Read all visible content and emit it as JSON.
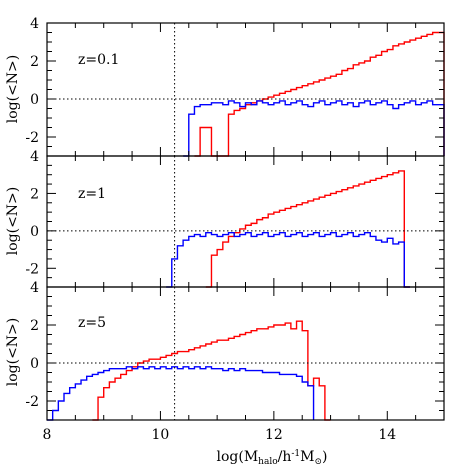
{
  "chart_data": [
    {
      "type": "line",
      "panel_label": "z=0.1",
      "ylabel": "log(<N>)",
      "xlim": [
        8,
        15
      ],
      "ylim": [
        -3,
        4
      ],
      "yticks": [
        -2,
        0,
        2,
        4
      ],
      "reference_lines": {
        "y": 0,
        "x": 10.25
      },
      "series": [
        {
          "color": "#ff0000",
          "x": [
            10.6,
            10.7,
            10.8,
            10.9,
            11.0,
            11.1,
            11.2,
            11.3,
            11.4,
            11.5,
            11.6,
            11.7,
            11.8,
            11.9,
            12.0,
            12.1,
            12.2,
            12.3,
            12.4,
            12.5,
            12.6,
            12.7,
            12.8,
            12.9,
            13.0,
            13.1,
            13.2,
            13.3,
            13.4,
            13.5,
            13.6,
            13.7,
            13.8,
            13.9,
            14.0,
            14.1,
            14.2,
            14.3,
            14.4,
            14.5,
            14.6,
            14.7,
            14.8,
            14.9
          ],
          "y": [
            -3.0,
            -1.5,
            -1.5,
            -3.0,
            -3.0,
            -3.0,
            -0.8,
            -0.6,
            -0.5,
            -0.3,
            -0.2,
            -0.1,
            0.0,
            0.1,
            0.2,
            0.3,
            0.4,
            0.5,
            0.6,
            0.7,
            0.8,
            0.9,
            1.0,
            1.1,
            1.2,
            1.3,
            1.5,
            1.6,
            1.8,
            1.9,
            2.0,
            2.2,
            2.3,
            2.5,
            2.6,
            2.8,
            2.9,
            3.0,
            3.1,
            3.2,
            3.3,
            3.4,
            3.5,
            3.5
          ]
        },
        {
          "color": "#0000ff",
          "x": [
            10.4,
            10.5,
            10.6,
            10.7,
            10.8,
            10.9,
            11.0,
            11.1,
            11.2,
            11.3,
            11.4,
            11.5,
            11.6,
            11.7,
            11.8,
            11.9,
            12.0,
            12.1,
            12.2,
            12.3,
            12.4,
            12.5,
            12.6,
            12.7,
            12.8,
            12.9,
            13.0,
            13.1,
            13.2,
            13.3,
            13.4,
            13.5,
            13.6,
            13.7,
            13.8,
            13.9,
            14.0,
            14.1,
            14.2,
            14.3,
            14.4,
            14.5,
            14.6,
            14.7,
            14.8,
            14.9
          ],
          "y": [
            -3.0,
            -0.8,
            -0.4,
            -0.3,
            -0.3,
            -0.2,
            -0.2,
            -0.3,
            -0.1,
            -0.2,
            -0.4,
            -0.2,
            -0.3,
            -0.1,
            -0.2,
            -0.3,
            -0.2,
            -0.1,
            -0.3,
            -0.2,
            -0.1,
            -0.3,
            -0.4,
            -0.2,
            -0.1,
            -0.3,
            -0.2,
            -0.1,
            -0.3,
            -0.2,
            -0.4,
            -0.2,
            -0.1,
            -0.3,
            -0.2,
            -0.1,
            -0.3,
            -0.5,
            -0.3,
            -0.2,
            -0.1,
            -0.3,
            -0.2,
            -0.1,
            -0.3,
            -0.3
          ]
        }
      ]
    },
    {
      "type": "line",
      "panel_label": "z=1",
      "ylabel": "log(<N>)",
      "xlim": [
        8,
        15
      ],
      "ylim": [
        -3,
        4
      ],
      "yticks": [
        -2,
        0,
        2,
        4
      ],
      "reference_lines": {
        "y": 0,
        "x": 10.25
      },
      "series": [
        {
          "color": "#ff0000",
          "x": [
            10.8,
            10.9,
            11.0,
            11.1,
            11.2,
            11.3,
            11.4,
            11.5,
            11.6,
            11.7,
            11.8,
            11.9,
            12.0,
            12.1,
            12.2,
            12.3,
            12.4,
            12.5,
            12.6,
            12.7,
            12.8,
            12.9,
            13.0,
            13.1,
            13.2,
            13.3,
            13.4,
            13.5,
            13.6,
            13.7,
            13.8,
            13.9,
            14.0,
            14.1,
            14.2,
            14.3
          ],
          "y": [
            -3.0,
            -1.3,
            -1.0,
            -0.6,
            -0.3,
            -0.1,
            0.1,
            0.3,
            0.4,
            0.6,
            0.7,
            0.9,
            1.0,
            1.1,
            1.2,
            1.3,
            1.4,
            1.5,
            1.6,
            1.7,
            1.8,
            1.9,
            2.0,
            2.1,
            2.2,
            2.3,
            2.4,
            2.5,
            2.6,
            2.7,
            2.8,
            2.9,
            3.0,
            3.1,
            3.2,
            -3.0
          ]
        },
        {
          "color": "#0000ff",
          "x": [
            10.1,
            10.2,
            10.3,
            10.4,
            10.5,
            10.6,
            10.7,
            10.8,
            10.9,
            11.0,
            11.1,
            11.2,
            11.3,
            11.4,
            11.5,
            11.6,
            11.7,
            11.8,
            11.9,
            12.0,
            12.1,
            12.2,
            12.3,
            12.4,
            12.5,
            12.6,
            12.7,
            12.8,
            12.9,
            13.0,
            13.1,
            13.2,
            13.3,
            13.4,
            13.5,
            13.6,
            13.7,
            13.8,
            13.9,
            14.0,
            14.1,
            14.2,
            14.3
          ],
          "y": [
            -3.0,
            -1.5,
            -0.8,
            -0.5,
            -0.3,
            -0.2,
            -0.3,
            -0.1,
            -0.2,
            -0.3,
            -0.2,
            -0.1,
            -0.3,
            -0.2,
            -0.1,
            -0.3,
            -0.2,
            -0.1,
            -0.3,
            -0.2,
            -0.1,
            -0.3,
            -0.2,
            -0.1,
            -0.3,
            -0.2,
            -0.1,
            -0.3,
            -0.2,
            -0.1,
            -0.3,
            -0.2,
            -0.1,
            -0.3,
            -0.2,
            -0.1,
            -0.3,
            -0.5,
            -0.6,
            -0.4,
            -0.7,
            -0.6,
            -3.0
          ]
        }
      ]
    },
    {
      "type": "line",
      "panel_label": "z=5",
      "ylabel": "log(<N>)",
      "xlabel": "log(M_halo/h^-1 M_sun)",
      "xlabel_parts": {
        "pre": "log(M",
        "sub1": "halo",
        "mid": "/h",
        "sup": "-1",
        "post1": "M",
        "sub2": "⊙",
        "post2": ")"
      },
      "xlim": [
        8,
        15
      ],
      "ylim": [
        -3,
        4
      ],
      "xticks": [
        8,
        10,
        12,
        14
      ],
      "yticks": [
        -2,
        0,
        2,
        4
      ],
      "reference_lines": {
        "y": 0,
        "x": 10.25
      },
      "series": [
        {
          "color": "#ff0000",
          "x": [
            8.8,
            8.9,
            9.0,
            9.1,
            9.2,
            9.3,
            9.4,
            9.5,
            9.6,
            9.7,
            9.8,
            9.9,
            10.0,
            10.1,
            10.2,
            10.3,
            10.4,
            10.5,
            10.6,
            10.7,
            10.8,
            10.9,
            11.0,
            11.1,
            11.2,
            11.3,
            11.4,
            11.5,
            11.6,
            11.7,
            11.8,
            11.9,
            12.0,
            12.1,
            12.2,
            12.3,
            12.4,
            12.5,
            12.6,
            12.7,
            12.8,
            12.9
          ],
          "y": [
            -3.0,
            -1.8,
            -1.3,
            -1.0,
            -0.8,
            -0.6,
            -0.4,
            -0.2,
            0.0,
            0.1,
            0.2,
            0.2,
            0.3,
            0.4,
            0.5,
            0.6,
            0.6,
            0.7,
            0.8,
            0.9,
            1.0,
            1.1,
            1.2,
            1.2,
            1.3,
            1.4,
            1.5,
            1.6,
            1.7,
            1.8,
            1.8,
            1.9,
            2.0,
            2.0,
            2.1,
            1.8,
            2.2,
            1.7,
            -1.2,
            -0.8,
            -1.2,
            -3.0
          ]
        },
        {
          "color": "#0000ff",
          "x": [
            8.0,
            8.1,
            8.2,
            8.3,
            8.4,
            8.5,
            8.6,
            8.7,
            8.8,
            8.9,
            9.0,
            9.1,
            9.2,
            9.3,
            9.4,
            9.5,
            9.6,
            9.7,
            9.8,
            9.9,
            10.0,
            10.1,
            10.2,
            10.3,
            10.4,
            10.5,
            10.6,
            10.7,
            10.8,
            10.9,
            11.0,
            11.1,
            11.2,
            11.3,
            11.4,
            11.5,
            11.6,
            11.7,
            11.8,
            11.9,
            12.0,
            12.1,
            12.2,
            12.3,
            12.4,
            12.5,
            12.6
          ],
          "y": [
            -3.0,
            -2.5,
            -2.0,
            -1.6,
            -1.3,
            -1.1,
            -0.9,
            -0.7,
            -0.6,
            -0.5,
            -0.4,
            -0.3,
            -0.3,
            -0.3,
            -0.2,
            -0.3,
            -0.2,
            -0.3,
            -0.2,
            -0.3,
            -0.2,
            -0.3,
            -0.2,
            -0.3,
            -0.2,
            -0.3,
            -0.2,
            -0.3,
            -0.2,
            -0.3,
            -0.3,
            -0.4,
            -0.3,
            -0.4,
            -0.3,
            -0.4,
            -0.4,
            -0.4,
            -0.5,
            -0.5,
            -0.5,
            -0.6,
            -0.6,
            -0.6,
            -0.7,
            -1.0,
            -1.2
          ]
        }
      ]
    }
  ]
}
